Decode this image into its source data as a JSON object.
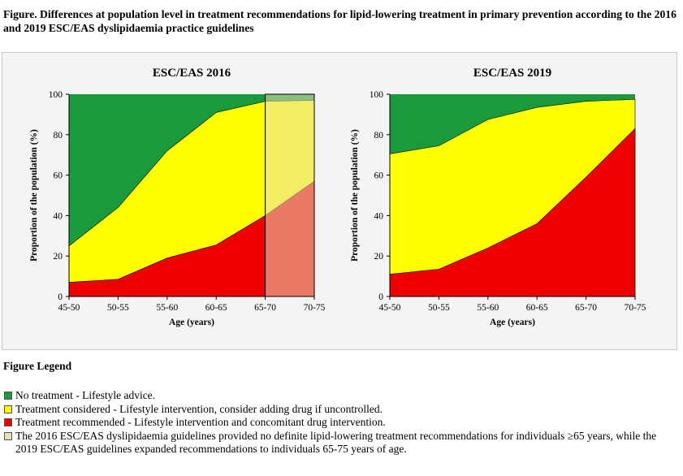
{
  "figure_title": "Figure. Differences at population level in treatment recommendations for lipid-lowering treatment in primary prevention according to the 2016 and 2019 ESC/EAS dyslipidaemia practice guidelines",
  "colors": {
    "no_treatment": "#1a9a3c",
    "considered": "#ffff00",
    "recommended": "#ee0000",
    "undefined_overlay": "#e8dfb8"
  },
  "chart_data": [
    {
      "type": "area",
      "stacked": true,
      "title": "ESC/EAS 2016",
      "xlabel": "Age (years)",
      "ylabel": "Proportion of the population (%)",
      "categories": [
        "45-50",
        "50-55",
        "55-60",
        "60-65",
        "65-70",
        "70-75"
      ],
      "ylim": [
        0,
        100
      ],
      "yticks": [
        0,
        20,
        40,
        60,
        80,
        100
      ],
      "recommended_upper": [
        7,
        8.5,
        19,
        25.5,
        40,
        57
      ],
      "considered_upper": [
        25,
        44,
        72,
        91,
        96.5,
        97
      ],
      "no_treatment_upper": [
        100,
        100,
        100,
        100,
        100,
        100
      ],
      "shaded_region": [
        "65-70",
        "70-75"
      ]
    },
    {
      "type": "area",
      "stacked": true,
      "title": "ESC/EAS 2019",
      "xlabel": "Age (years)",
      "ylabel": "Proportion of the population (%)",
      "categories": [
        "45-50",
        "50-55",
        "55-60",
        "60-65",
        "65-70",
        "70-75"
      ],
      "ylim": [
        0,
        100
      ],
      "yticks": [
        0,
        20,
        40,
        60,
        80,
        100
      ],
      "recommended_upper": [
        11,
        13.5,
        24,
        36,
        59,
        83
      ],
      "considered_upper": [
        70.5,
        74.5,
        87.5,
        93.5,
        96.5,
        97.5
      ],
      "no_treatment_upper": [
        100,
        100,
        100,
        100,
        100,
        100
      ]
    }
  ],
  "legend": {
    "title": "Figure Legend",
    "items": [
      {
        "text": "No treatment - Lifestyle advice.",
        "color": "#1a9a3c"
      },
      {
        "text": "Treatment considered - Lifestyle intervention, consider adding drug if uncontrolled.",
        "color": "#ffff00"
      },
      {
        "text": "Treatment recommended - Lifestyle intervention and concomitant drug intervention.",
        "color": "#ee0000"
      },
      {
        "text": "The 2016 ESC/EAS dyslipidaemia guidelines provided no definite lipid-lowering treatment recommendations for individuals ≥65 years, while the 2019 ESC/EAS guidelines expanded recommendations to individuals 65-75 years of age.",
        "color": "#e8dfb8"
      }
    ]
  }
}
